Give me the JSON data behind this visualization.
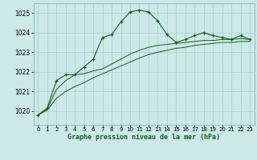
{
  "title": "Graphe pression niveau de la mer (hPa)",
  "background_color": "#cce8e8",
  "grid_color": "#aacccc",
  "line_color": "#1a5c1a",
  "xlim": [
    -0.5,
    23.5
  ],
  "ylim": [
    1019.3,
    1025.5
  ],
  "yticks": [
    1020,
    1021,
    1022,
    1023,
    1024,
    1025
  ],
  "xticks": [
    0,
    1,
    2,
    3,
    4,
    5,
    6,
    7,
    8,
    9,
    10,
    11,
    12,
    13,
    14,
    15,
    16,
    17,
    18,
    19,
    20,
    21,
    22,
    23
  ],
  "series1_x": [
    0,
    1,
    2,
    3,
    4,
    5,
    6,
    7,
    8,
    9,
    10,
    11,
    12,
    13,
    14,
    15,
    16,
    17,
    18,
    19,
    20,
    21,
    22,
    23
  ],
  "series1_y": [
    1019.8,
    1020.15,
    1021.55,
    1021.85,
    1021.85,
    1022.25,
    1022.65,
    1023.75,
    1023.9,
    1024.55,
    1025.05,
    1025.15,
    1025.05,
    1024.6,
    1023.9,
    1023.5,
    1023.65,
    1023.85,
    1024.0,
    1023.85,
    1023.75,
    1023.65,
    1023.85,
    1023.65
  ],
  "series2_x": [
    0,
    1,
    2,
    3,
    4,
    5,
    6,
    7,
    8,
    9,
    10,
    11,
    12,
    13,
    14,
    15,
    16,
    17,
    18,
    19,
    20,
    21,
    22,
    23
  ],
  "series2_y": [
    1019.8,
    1020.1,
    1021.1,
    1021.55,
    1021.85,
    1021.9,
    1022.05,
    1022.15,
    1022.4,
    1022.65,
    1022.9,
    1023.1,
    1023.25,
    1023.35,
    1023.4,
    1023.45,
    1023.5,
    1023.55,
    1023.6,
    1023.6,
    1023.65,
    1023.65,
    1023.7,
    1023.65
  ],
  "series3_x": [
    0,
    1,
    2,
    3,
    4,
    5,
    6,
    7,
    8,
    9,
    10,
    11,
    12,
    13,
    14,
    15,
    16,
    17,
    18,
    19,
    20,
    21,
    22,
    23
  ],
  "series3_y": [
    1019.8,
    1020.05,
    1020.65,
    1021.0,
    1021.25,
    1021.45,
    1021.7,
    1021.9,
    1022.1,
    1022.3,
    1022.5,
    1022.7,
    1022.88,
    1023.0,
    1023.1,
    1023.2,
    1023.25,
    1023.35,
    1023.4,
    1023.45,
    1023.5,
    1023.5,
    1023.55,
    1023.55
  ]
}
